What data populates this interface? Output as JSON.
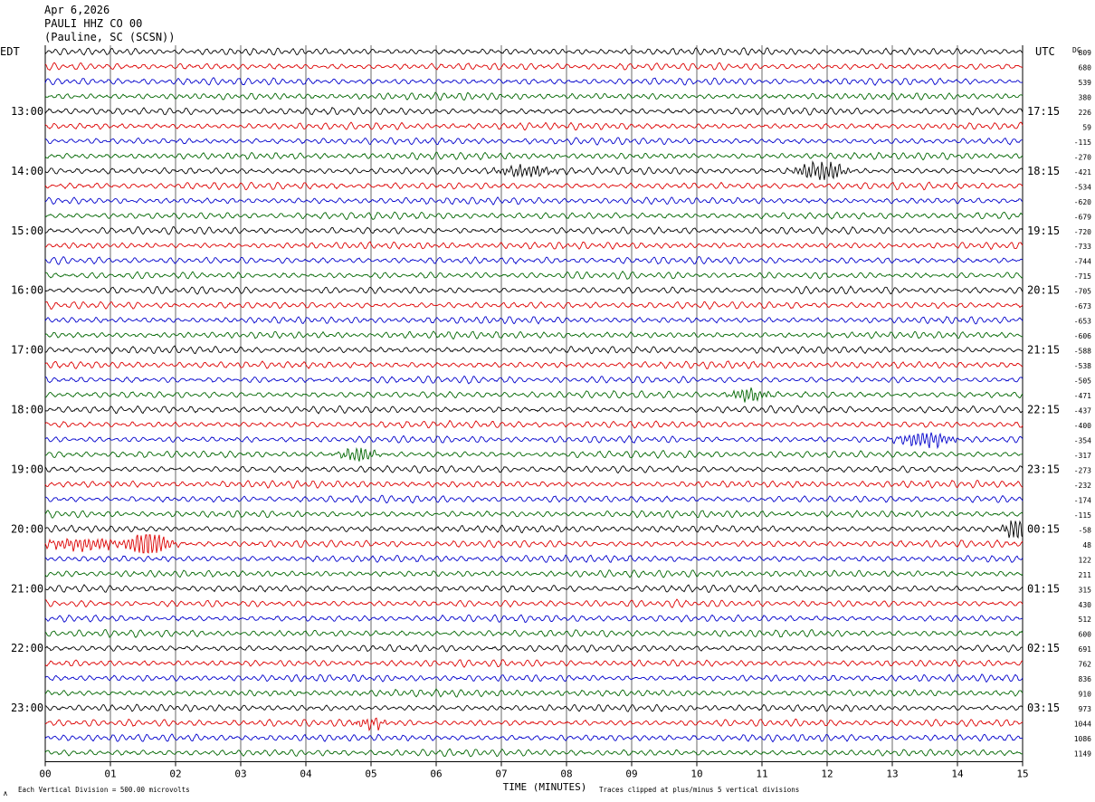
{
  "header": {
    "line1": "Apr 6,2026",
    "line2": "PAULI HHZ CO 00",
    "line3": "(Pauline, SC (SCSN))"
  },
  "left_timezone": "EDT",
  "right_timezone": "UTC",
  "dc_label": "DC",
  "footer": {
    "scale_note": "Each Vertical Division =  500.00 microvolts",
    "clip_note": "Traces clipped at plus/minus 5 vertical divisions",
    "symbol": "∧"
  },
  "colors": {
    "trace_cycle": [
      "#000000",
      "#dd0000",
      "#0000cc",
      "#006600"
    ],
    "grid": "#000000"
  },
  "chart_data": {
    "type": "line",
    "subtype": "helicorder",
    "xlabel": "TIME (MINUTES)",
    "xlim": [
      0,
      15
    ],
    "x_ticks": [
      "00",
      "01",
      "02",
      "03",
      "04",
      "05",
      "06",
      "07",
      "08",
      "09",
      "10",
      "11",
      "12",
      "13",
      "14",
      "15"
    ],
    "rows": 48,
    "row_minutes": 15,
    "left_hour_labels": [
      {
        "row": 4,
        "label": "13:00"
      },
      {
        "row": 8,
        "label": "14:00"
      },
      {
        "row": 12,
        "label": "15:00"
      },
      {
        "row": 16,
        "label": "16:00"
      },
      {
        "row": 20,
        "label": "17:00"
      },
      {
        "row": 24,
        "label": "18:00"
      },
      {
        "row": 28,
        "label": "19:00"
      },
      {
        "row": 32,
        "label": "20:00"
      },
      {
        "row": 36,
        "label": "21:00"
      },
      {
        "row": 40,
        "label": "22:00"
      },
      {
        "row": 44,
        "label": "23:00"
      }
    ],
    "right_hour_labels": [
      {
        "row": 4,
        "label": "17:15"
      },
      {
        "row": 8,
        "label": "18:15"
      },
      {
        "row": 12,
        "label": "19:15"
      },
      {
        "row": 16,
        "label": "20:15"
      },
      {
        "row": 20,
        "label": "21:15"
      },
      {
        "row": 24,
        "label": "22:15"
      },
      {
        "row": 28,
        "label": "23:15"
      },
      {
        "row": 32,
        "label": "00:15"
      },
      {
        "row": 36,
        "label": "01:15"
      },
      {
        "row": 40,
        "label": "02:15"
      },
      {
        "row": 44,
        "label": "03:15"
      }
    ],
    "dc_offsets": [
      "809",
      "680",
      "539",
      "380",
      "226",
      "59",
      "-115",
      "-270",
      "-421",
      "-534",
      "-620",
      "-679",
      "-720",
      "-733",
      "-744",
      "-715",
      "-705",
      "-673",
      "-653",
      "-606",
      "-588",
      "-538",
      "-505",
      "-471",
      "-437",
      "-400",
      "-354",
      "-317",
      "-273",
      "-232",
      "-174",
      "-115",
      "-58",
      "48",
      "122",
      "211",
      "315",
      "430",
      "512",
      "600",
      "691",
      "762",
      "836",
      "910",
      "973",
      "1044",
      "1086",
      "1149"
    ],
    "bursts": [
      {
        "row": 8,
        "minute": 11.9,
        "width_min": 0.5,
        "amp": 2.2
      },
      {
        "row": 8,
        "minute": 7.4,
        "width_min": 0.6,
        "amp": 1.3
      },
      {
        "row": 23,
        "minute": 10.8,
        "width_min": 0.4,
        "amp": 1.4
      },
      {
        "row": 26,
        "minute": 13.5,
        "width_min": 0.6,
        "amp": 1.6
      },
      {
        "row": 27,
        "minute": 4.8,
        "width_min": 0.35,
        "amp": 1.6
      },
      {
        "row": 32,
        "minute": 14.9,
        "width_min": 0.25,
        "amp": 2.4
      },
      {
        "row": 33,
        "minute": 0.6,
        "width_min": 0.9,
        "amp": 1.3
      },
      {
        "row": 33,
        "minute": 1.6,
        "width_min": 0.4,
        "amp": 3.2
      },
      {
        "row": 45,
        "minute": 5.0,
        "width_min": 0.3,
        "amp": 1.3
      }
    ]
  }
}
